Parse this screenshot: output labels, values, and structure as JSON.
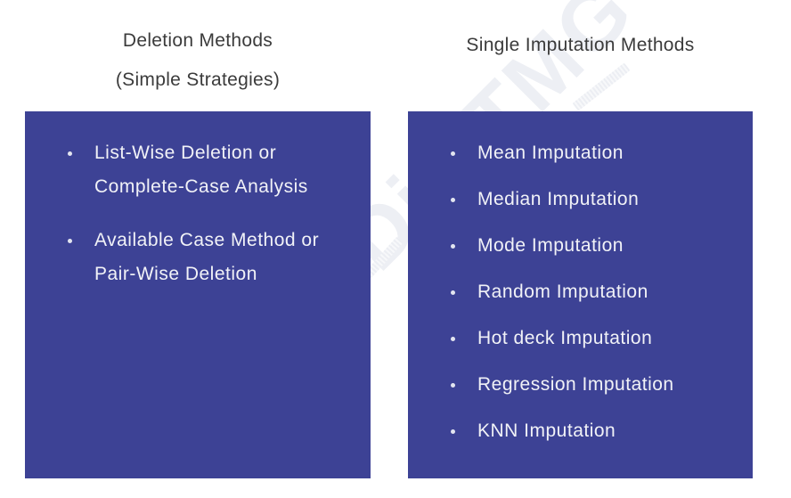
{
  "colors": {
    "panel": "#3d4295",
    "title_text": "#3b3b3b",
    "item_text": "#f1f2f7",
    "watermark": "#edeff4"
  },
  "watermark": {
    "text": "360DigiTMG"
  },
  "left_section": {
    "title_line1": "Deletion Methods",
    "title_line2": "(Simple Strategies)",
    "items": [
      {
        "line1": "List-Wise Deletion or",
        "line2": "Complete-Case Analysis"
      },
      {
        "line1": "Available Case Method or",
        "line2": "Pair-Wise Deletion"
      }
    ]
  },
  "right_section": {
    "title": "Single Imputation Methods",
    "items": [
      "Mean Imputation",
      "Median Imputation",
      "Mode Imputation",
      "Random Imputation",
      "Hot deck Imputation",
      "Regression Imputation",
      "KNN Imputation"
    ]
  }
}
